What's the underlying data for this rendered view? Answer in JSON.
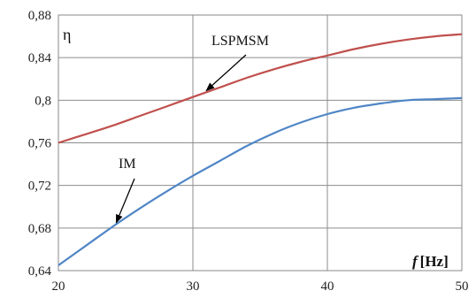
{
  "chart_data": {
    "type": "line",
    "xlim": [
      20,
      50
    ],
    "ylim": [
      0.64,
      0.88
    ],
    "x_ticks": [
      20,
      30,
      40,
      50
    ],
    "y_ticks": [
      0.64,
      0.68,
      0.72,
      0.76,
      0.8,
      0.84,
      0.88
    ],
    "x_tick_labels": [
      "20",
      "30",
      "40",
      "50"
    ],
    "y_tick_labels": [
      "0,64",
      "0,68",
      "0,72",
      "0,76",
      "0,8",
      "0,84",
      "0,88"
    ],
    "grid": true,
    "ylabel": "η",
    "xlabel_symbol": "f",
    "xlabel_unit": "[Hz]",
    "series": [
      {
        "name": "LSPMSM",
        "color": "#c0504d",
        "x": [
          20,
          22,
          24,
          26,
          28,
          30,
          32,
          34,
          36,
          38,
          40,
          42,
          44,
          46,
          48,
          50
        ],
        "values": [
          0.76,
          0.768,
          0.776,
          0.785,
          0.794,
          0.803,
          0.812,
          0.821,
          0.829,
          0.836,
          0.842,
          0.848,
          0.853,
          0.857,
          0.86,
          0.862
        ]
      },
      {
        "name": "IM",
        "color": "#4f86c6",
        "x": [
          20,
          22,
          24,
          26,
          28,
          30,
          32,
          34,
          36,
          38,
          40,
          42,
          44,
          46,
          48,
          50
        ],
        "values": [
          0.645,
          0.663,
          0.681,
          0.698,
          0.714,
          0.729,
          0.743,
          0.757,
          0.769,
          0.779,
          0.787,
          0.793,
          0.797,
          0.8,
          0.801,
          0.802
        ]
      }
    ],
    "annotations": [
      {
        "text": "LSPMSM",
        "arrow_to": [
          31.0,
          0.809
        ]
      },
      {
        "text": "IM",
        "arrow_to": [
          24.3,
          0.685
        ]
      }
    ]
  }
}
